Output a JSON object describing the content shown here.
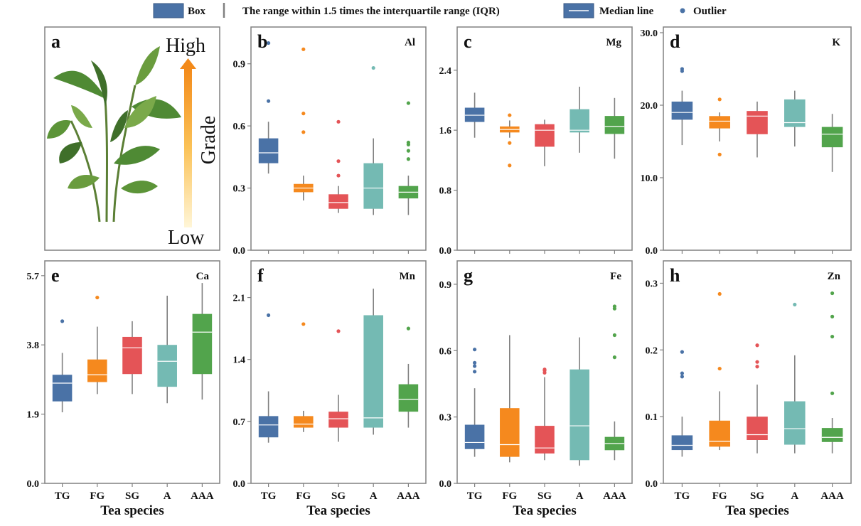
{
  "legend": {
    "box_label": "Box",
    "range_label": "The range within 1.5 times the interquartile range (IQR)",
    "median_label": "Median line",
    "outlier_label": "Outlier"
  },
  "panel_a": {
    "letter": "a",
    "high": "High",
    "low": "Low",
    "grade": "Grade"
  },
  "colors": {
    "TG": "#4a72a6",
    "FG": "#f5891e",
    "SG": "#e45457",
    "A": "#74bab3",
    "AAA": "#52a44c",
    "frame": "#808080",
    "whisker": "#808080",
    "leaf_dark": "#3f6f2a",
    "leaf_light": "#7aa94a"
  },
  "chart_data": [
    {
      "type": "box",
      "letter": "b",
      "element": "Al",
      "categories": [
        "TG",
        "FG",
        "SG",
        "A",
        "AAA"
      ],
      "ylim": [
        0,
        1.05
      ],
      "yticks": [
        "0.0",
        "0.3",
        "0.6",
        "0.9"
      ],
      "xlabel": "",
      "boxes": [
        {
          "whislo": 0.37,
          "q1": 0.42,
          "med": 0.47,
          "q3": 0.54,
          "whishi": 0.62,
          "fliers": [
            0.72,
            1.0
          ]
        },
        {
          "whislo": 0.24,
          "q1": 0.28,
          "med": 0.3,
          "q3": 0.32,
          "whishi": 0.36,
          "fliers": [
            0.57,
            0.66,
            0.97
          ]
        },
        {
          "whislo": 0.18,
          "q1": 0.2,
          "med": 0.23,
          "q3": 0.27,
          "whishi": 0.31,
          "fliers": [
            0.36,
            0.43,
            0.62
          ]
        },
        {
          "whislo": 0.17,
          "q1": 0.2,
          "med": 0.3,
          "q3": 0.42,
          "whishi": 0.54,
          "fliers": [
            0.88
          ]
        },
        {
          "whislo": 0.17,
          "q1": 0.25,
          "med": 0.28,
          "q3": 0.31,
          "whishi": 0.36,
          "fliers": [
            0.44,
            0.48,
            0.51,
            0.52,
            0.71
          ]
        }
      ]
    },
    {
      "type": "box",
      "letter": "c",
      "element": "Mg",
      "categories": [
        "TG",
        "FG",
        "SG",
        "A",
        "AAA"
      ],
      "ylim": [
        0,
        2.9
      ],
      "yticks": [
        "0.0",
        "0.8",
        "1.6",
        "2.4"
      ],
      "xlabel": "",
      "boxes": [
        {
          "whislo": 1.5,
          "q1": 1.71,
          "med": 1.8,
          "q3": 1.9,
          "whishi": 2.1,
          "fliers": []
        },
        {
          "whislo": 1.5,
          "q1": 1.57,
          "med": 1.61,
          "q3": 1.65,
          "whishi": 1.73,
          "fliers": [
            1.13,
            1.43,
            1.8
          ]
        },
        {
          "whislo": 1.12,
          "q1": 1.38,
          "med": 1.6,
          "q3": 1.68,
          "whishi": 1.74,
          "fliers": []
        },
        {
          "whislo": 1.3,
          "q1": 1.57,
          "med": 1.6,
          "q3": 1.88,
          "whishi": 2.18,
          "fliers": []
        },
        {
          "whislo": 1.22,
          "q1": 1.55,
          "med": 1.65,
          "q3": 1.79,
          "whishi": 2.03,
          "fliers": []
        }
      ]
    },
    {
      "type": "box",
      "letter": "d",
      "element": "K",
      "categories": [
        "TG",
        "FG",
        "SG",
        "A",
        "AAA"
      ],
      "ylim": [
        0,
        30
      ],
      "yticks": [
        "0.0",
        "10.0",
        "20.0",
        "30.0"
      ],
      "xlabel": "",
      "boxes": [
        {
          "whislo": 14.5,
          "q1": 18.0,
          "med": 19.0,
          "q3": 20.5,
          "whishi": 22.0,
          "fliers": [
            24.7,
            25.0
          ]
        },
        {
          "whislo": 15.0,
          "q1": 16.8,
          "med": 17.8,
          "q3": 18.5,
          "whishi": 19.0,
          "fliers": [
            13.2,
            20.8
          ]
        },
        {
          "whislo": 12.8,
          "q1": 16.0,
          "med": 18.5,
          "q3": 19.2,
          "whishi": 20.5,
          "fliers": []
        },
        {
          "whislo": 14.3,
          "q1": 17.0,
          "med": 17.6,
          "q3": 20.8,
          "whishi": 22.0,
          "fliers": []
        },
        {
          "whislo": 10.8,
          "q1": 14.2,
          "med": 16.0,
          "q3": 17.0,
          "whishi": 18.8,
          "fliers": []
        }
      ]
    },
    {
      "type": "box",
      "letter": "e",
      "element": "Ca",
      "categories": [
        "TG",
        "FG",
        "SG",
        "A",
        "AAA"
      ],
      "ylim": [
        0,
        5.95
      ],
      "yticks": [
        "0.0",
        "1.9",
        "3.8",
        "5.7"
      ],
      "xlabel": "Tea species",
      "boxes": [
        {
          "whislo": 1.95,
          "q1": 2.25,
          "med": 2.75,
          "q3": 2.98,
          "whishi": 3.58,
          "fliers": [
            4.45
          ]
        },
        {
          "whislo": 2.45,
          "q1": 2.78,
          "med": 2.98,
          "q3": 3.4,
          "whishi": 4.3,
          "fliers": [
            5.1
          ]
        },
        {
          "whislo": 2.45,
          "q1": 3.0,
          "med": 3.72,
          "q3": 4.02,
          "whishi": 4.45,
          "fliers": []
        },
        {
          "whislo": 2.2,
          "q1": 2.65,
          "med": 3.35,
          "q3": 3.8,
          "whishi": 5.15,
          "fliers": []
        },
        {
          "whislo": 2.3,
          "q1": 3.0,
          "med": 4.15,
          "q3": 4.65,
          "whishi": 5.5,
          "fliers": []
        }
      ]
    },
    {
      "type": "box",
      "letter": "f",
      "element": "Mn",
      "categories": [
        "TG",
        "FG",
        "SG",
        "A",
        "AAA"
      ],
      "ylim": [
        0,
        2.45
      ],
      "yticks": [
        "0.0",
        "0.7",
        "1.4",
        "2.1"
      ],
      "xlabel": "Tea species",
      "boxes": [
        {
          "whislo": 0.46,
          "q1": 0.52,
          "med": 0.66,
          "q3": 0.76,
          "whishi": 1.04,
          "fliers": [
            1.9
          ]
        },
        {
          "whislo": 0.58,
          "q1": 0.63,
          "med": 0.67,
          "q3": 0.76,
          "whishi": 0.82,
          "fliers": [
            1.8
          ]
        },
        {
          "whislo": 0.47,
          "q1": 0.63,
          "med": 0.73,
          "q3": 0.81,
          "whishi": 1.0,
          "fliers": [
            1.72
          ]
        },
        {
          "whislo": 0.55,
          "q1": 0.63,
          "med": 0.74,
          "q3": 1.9,
          "whishi": 2.2,
          "fliers": []
        },
        {
          "whislo": 0.63,
          "q1": 0.81,
          "med": 0.95,
          "q3": 1.12,
          "whishi": 1.35,
          "fliers": [
            1.75
          ]
        }
      ]
    },
    {
      "type": "box",
      "letter": "g",
      "element": "Fe",
      "categories": [
        "TG",
        "FG",
        "SG",
        "A",
        "AAA"
      ],
      "ylim": [
        0,
        0.98
      ],
      "yticks": [
        "0.0",
        "0.3",
        "0.6",
        "0.9"
      ],
      "xlabel": "Tea species",
      "boxes": [
        {
          "whislo": 0.12,
          "q1": 0.155,
          "med": 0.185,
          "q3": 0.265,
          "whishi": 0.43,
          "fliers": [
            0.505,
            0.53,
            0.545,
            0.605
          ]
        },
        {
          "whislo": 0.095,
          "q1": 0.12,
          "med": 0.175,
          "q3": 0.34,
          "whishi": 0.67,
          "fliers": []
        },
        {
          "whislo": 0.105,
          "q1": 0.135,
          "med": 0.16,
          "q3": 0.26,
          "whishi": 0.48,
          "fliers": [
            0.5,
            0.51,
            0.515
          ]
        },
        {
          "whislo": 0.08,
          "q1": 0.105,
          "med": 0.26,
          "q3": 0.515,
          "whishi": 0.66,
          "fliers": []
        },
        {
          "whislo": 0.105,
          "q1": 0.15,
          "med": 0.18,
          "q3": 0.21,
          "whishi": 0.28,
          "fliers": [
            0.57,
            0.67,
            0.79,
            0.8
          ]
        }
      ]
    },
    {
      "type": "box",
      "letter": "h",
      "element": "Zn",
      "categories": [
        "TG",
        "FG",
        "SG",
        "A",
        "AAA"
      ],
      "ylim": [
        0,
        0.325
      ],
      "yticks": [
        "0.0",
        "0.1",
        "0.2",
        "0.3"
      ],
      "xlabel": "Tea species",
      "boxes": [
        {
          "whislo": 0.04,
          "q1": 0.05,
          "med": 0.057,
          "q3": 0.072,
          "whishi": 0.1,
          "fliers": [
            0.16,
            0.165,
            0.197
          ]
        },
        {
          "whislo": 0.05,
          "q1": 0.055,
          "med": 0.063,
          "q3": 0.094,
          "whishi": 0.138,
          "fliers": [
            0.172,
            0.284
          ]
        },
        {
          "whislo": 0.045,
          "q1": 0.065,
          "med": 0.073,
          "q3": 0.1,
          "whishi": 0.148,
          "fliers": [
            0.175,
            0.182,
            0.207
          ]
        },
        {
          "whislo": 0.045,
          "q1": 0.058,
          "med": 0.082,
          "q3": 0.123,
          "whishi": 0.192,
          "fliers": [
            0.268
          ]
        },
        {
          "whislo": 0.045,
          "q1": 0.062,
          "med": 0.069,
          "q3": 0.083,
          "whishi": 0.098,
          "fliers": [
            0.135,
            0.22,
            0.25,
            0.285
          ]
        }
      ]
    }
  ]
}
